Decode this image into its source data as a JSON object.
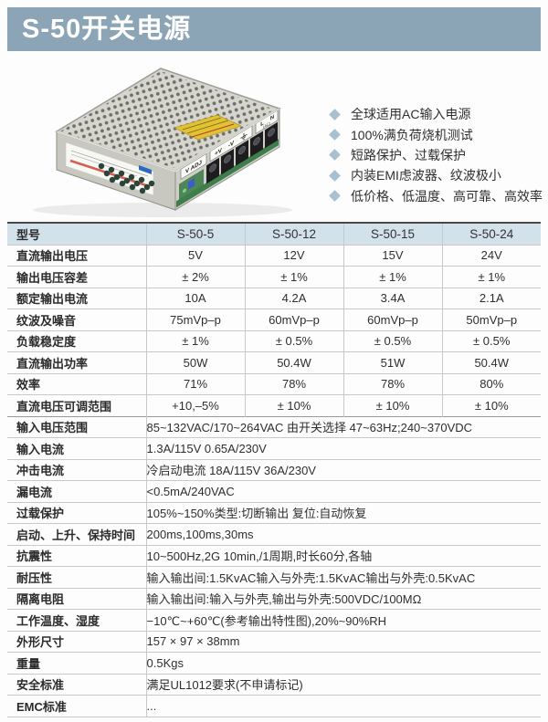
{
  "header": {
    "title": "S-50开关电源"
  },
  "features": [
    "全球适用AC输入电源",
    "100%满负荷烧机测试",
    "短路保护、过载保护",
    "内装EMI虑波器、纹波极小",
    "低价格、低温度、高可靠、高效率"
  ],
  "icons": {
    "bullet": "diamond-bullet",
    "ground": "earth-ground-symbol"
  },
  "colors": {
    "titlebar_bg": "#8ba4b6",
    "table_header_bg": "#d2e1ea",
    "bullet": "#a9c0d1",
    "table_border": "#c9c9c9",
    "table_top_border": "#4a4a4a"
  },
  "product": {
    "panel_labels": {
      "v_adj": "V ADJ",
      "plus_v": "+V",
      "minus_v": "-V",
      "line": "L",
      "neutral": "N",
      "ac": "(AC)"
    }
  },
  "table": {
    "header": [
      "型号",
      "S-50-5",
      "S-50-12",
      "S-50-15",
      "S-50-24"
    ],
    "spec_rows": [
      {
        "label": "直流输出电压",
        "values": [
          "5V",
          "12V",
          "15V",
          "24V"
        ]
      },
      {
        "label": "输出电压容差",
        "values": [
          "± 2%",
          "± 1%",
          "± 1%",
          "± 1%"
        ]
      },
      {
        "label": "额定输出电流",
        "values": [
          "10A",
          "4.2A",
          "3.4A",
          "2.1A"
        ]
      },
      {
        "label": "纹波及噪音",
        "values": [
          "75mVp–p",
          "60mVp–p",
          "60mVp–p",
          "50mVp–p"
        ]
      },
      {
        "label": "负载稳定度",
        "values": [
          "± 1%",
          "± 0.5%",
          "± 0.5%",
          "± 0.5%"
        ]
      },
      {
        "label": "直流输出功率",
        "values": [
          "50W",
          "50.4W",
          "51W",
          "50.4W"
        ]
      },
      {
        "label": "效率",
        "values": [
          "71%",
          "78%",
          "78%",
          "80%"
        ]
      },
      {
        "label": "直流电压可调范围",
        "values": [
          "+10,–5%",
          "± 10%",
          "± 10%",
          "± 10%"
        ]
      }
    ],
    "full_rows": [
      {
        "label": "输入电压范围",
        "value": "85~132VAC/170~264VAC 由开关选择 47~63Hz;240~370VDC"
      },
      {
        "label": "输入电流",
        "value": "1.3A/115V 0.65A/230V"
      },
      {
        "label": "冲击电流",
        "value": "冷启动电流 18A/115V 36A/230V"
      },
      {
        "label": "漏电流",
        "value": "<0.5mA/240VAC"
      },
      {
        "label": "过载保护",
        "value": "105%~150%类型:切断输出 复位:自动恢复"
      },
      {
        "label": "启动、上升、保持时间",
        "value": "200ms,100ms,30ms"
      },
      {
        "label": "抗震性",
        "value": "10~500Hz,2G 10min,/1周期,时长60分,各轴"
      },
      {
        "label": "耐压性",
        "value": "输入输出间:1.5KvAC输入与外壳:1.5KvAC输出与外壳:0.5KvAC"
      },
      {
        "label": "隔离电阻",
        "value": "输入输出间:输入与外壳,输出与外壳:500VDC/100MΩ"
      },
      {
        "label": "工作温度、湿度",
        "value": "−10℃~+60℃(参考输出特性图),20%~90%RH"
      },
      {
        "label": "外形尺寸",
        "value": "157 × 97 × 38mm"
      },
      {
        "label": "重量",
        "value": "0.5Kgs"
      },
      {
        "label": "安全标准",
        "value": "满足UL1012要求(不申请标记)"
      },
      {
        "label": "EMC标准",
        "value": "..."
      }
    ]
  }
}
